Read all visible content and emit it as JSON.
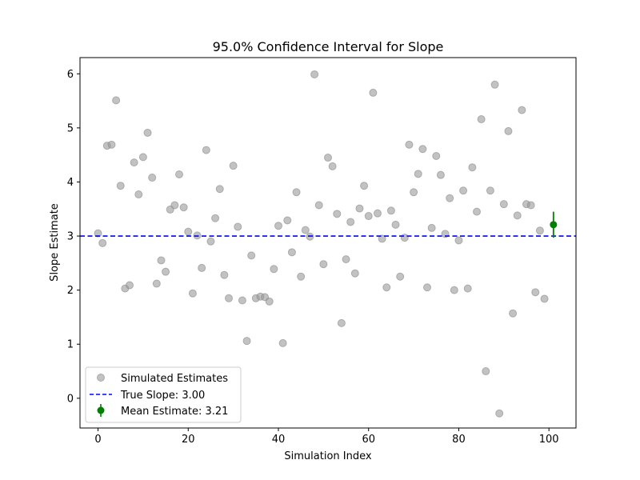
{
  "chart_data": {
    "type": "scatter",
    "title": "95.0% Confidence Interval for Slope",
    "xlabel": "Simulation Index",
    "ylabel": "Slope Estimate",
    "xlim": [
      -4,
      106
    ],
    "ylim": [
      -0.55,
      6.3
    ],
    "xticks": [
      0,
      20,
      40,
      60,
      80,
      100
    ],
    "yticks": [
      0,
      1,
      2,
      3,
      4,
      5,
      6
    ],
    "grid": false,
    "legend_position": "lower-left",
    "colors": {
      "points": "#999999",
      "true_line": "#0000ff",
      "mean": "#008000"
    },
    "series": [
      {
        "name": "Simulated Estimates",
        "x": [
          0,
          1,
          2,
          3,
          4,
          5,
          6,
          7,
          8,
          9,
          10,
          11,
          12,
          13,
          14,
          15,
          16,
          17,
          18,
          19,
          20,
          21,
          22,
          23,
          24,
          25,
          26,
          27,
          28,
          29,
          30,
          31,
          32,
          33,
          34,
          35,
          36,
          37,
          38,
          39,
          40,
          41,
          42,
          43,
          44,
          45,
          46,
          47,
          48,
          49,
          50,
          51,
          52,
          53,
          54,
          55,
          56,
          57,
          58,
          59,
          60,
          61,
          62,
          63,
          64,
          65,
          66,
          67,
          68,
          69,
          70,
          71,
          72,
          73,
          74,
          75,
          76,
          77,
          78,
          79,
          80,
          81,
          82,
          83,
          84,
          85,
          86,
          87,
          88,
          89,
          90,
          91,
          92,
          93,
          94,
          95,
          96,
          97,
          98,
          99
        ],
        "y": [
          3.05,
          2.87,
          4.67,
          4.69,
          5.51,
          3.93,
          2.03,
          2.09,
          4.36,
          3.77,
          4.46,
          4.91,
          4.08,
          2.12,
          2.55,
          2.34,
          3.49,
          3.57,
          4.14,
          3.53,
          3.08,
          1.94,
          3.01,
          2.41,
          4.59,
          2.9,
          3.33,
          3.87,
          2.28,
          1.85,
          4.3,
          3.17,
          1.81,
          1.06,
          2.64,
          1.85,
          1.88,
          1.87,
          1.79,
          2.39,
          3.19,
          1.02,
          3.29,
          2.7,
          3.81,
          2.25,
          3.11,
          2.99,
          5.99,
          3.57,
          2.48,
          4.45,
          4.29,
          3.41,
          1.39,
          2.57,
          3.26,
          2.31,
          3.51,
          3.93,
          3.37,
          5.65,
          3.42,
          2.95,
          2.05,
          3.47,
          3.21,
          2.25,
          2.97,
          4.69,
          3.81,
          4.15,
          4.61,
          2.05,
          3.15,
          4.48,
          4.13,
          3.04,
          3.7,
          2.0,
          2.92,
          3.84,
          2.03,
          4.27,
          3.45,
          5.16,
          0.5,
          3.84,
          5.8,
          -0.28,
          3.59,
          4.94,
          1.57,
          3.38,
          5.33,
          3.59,
          3.57,
          1.96,
          3.1,
          1.84
        ]
      },
      {
        "name": "True Slope: 3.00",
        "y": 3.0
      },
      {
        "name": "Mean Estimate: 3.21",
        "x": 101,
        "y": 3.21,
        "ci": [
          2.97,
          3.45
        ]
      }
    ]
  }
}
